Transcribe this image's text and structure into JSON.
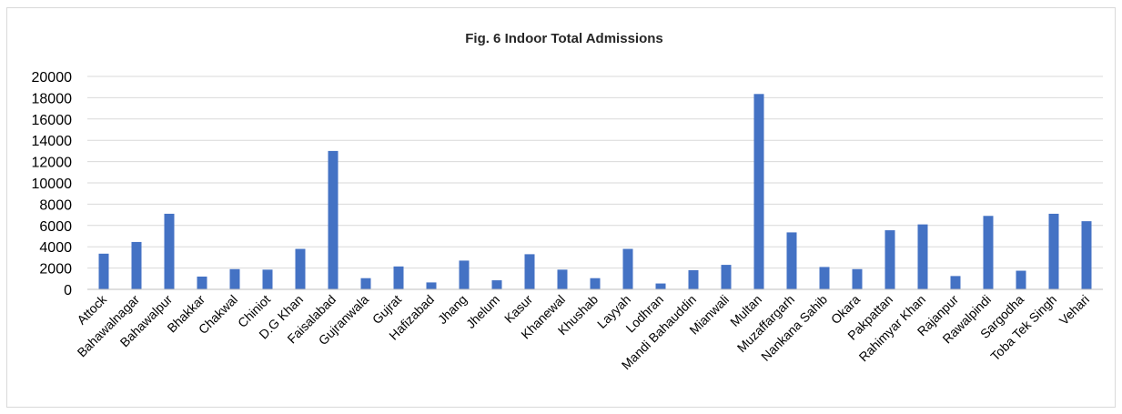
{
  "chart_data": {
    "type": "bar",
    "title": "Fig. 6 Indoor Total Admissions",
    "xlabel": "",
    "ylabel": "",
    "ylim": [
      0,
      20000
    ],
    "yticks": [
      0,
      2000,
      4000,
      6000,
      8000,
      10000,
      12000,
      14000,
      16000,
      18000,
      20000
    ],
    "ytick_labels": [
      "0",
      "2000",
      "4000",
      "6000",
      "8000",
      "10000",
      "12000",
      "14000",
      "16000",
      "18000",
      "20000"
    ],
    "grid": true,
    "legend": "none",
    "bar_color": "#4472c4",
    "categories": [
      "Attock",
      "Bahawalnagar",
      "Bahawalpur",
      "Bhakkar",
      "Chakwal",
      "Chiniot",
      "D.G Khan",
      "Faisalabad",
      "Gujranwala",
      "Gujrat",
      "Hafizabad",
      "Jhang",
      "Jhelum",
      "Kasur",
      "Khanewal",
      "Khushab",
      "Layyah",
      "Lodhran",
      "Mandi Bahauddin",
      "Mianwali",
      "Multan",
      "Muzaffargarh",
      "Nankana Sahib",
      "Okara",
      "Pakpattan",
      "Rahimyar Khan",
      "Rajanpur",
      "Rawalpindi",
      "Sargodha",
      "Toba Tek Singh",
      "Vehari"
    ],
    "values": [
      3350,
      4450,
      7100,
      1200,
      1900,
      1850,
      3800,
      13000,
      1050,
      2150,
      650,
      2700,
      850,
      3300,
      1850,
      1050,
      3800,
      550,
      1800,
      2300,
      18350,
      5350,
      2100,
      1900,
      5550,
      6100,
      1250,
      6900,
      1750,
      7100,
      6400
    ]
  }
}
